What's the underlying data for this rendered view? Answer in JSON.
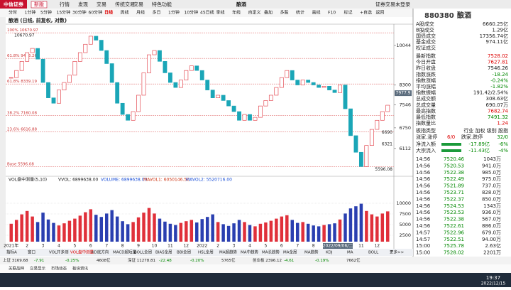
{
  "header": {
    "logo": "中信证券",
    "version_button": "新版",
    "menu": [
      "行情",
      "发现",
      "交易",
      "传统交易",
      "交易",
      "特色功能"
    ],
    "center_title": "酿酒",
    "login": "证券交易未登录"
  },
  "period_tabs": [
    "分时",
    "1分钟",
    "5分钟",
    "15分钟",
    "30分钟",
    "60分钟",
    "日线",
    "周线",
    "月线",
    "多日",
    "1分钟",
    "10分钟",
    "45日线",
    "季线",
    "年线",
    "自定义",
    "叠加",
    "多股",
    "统计",
    "画线",
    "F10",
    "标记",
    "+自选",
    "返回"
  ],
  "chart_title": "酿酒 (日线, 前复权, 对数)",
  "chart_data": {
    "type": "candlestick",
    "log_scale": true,
    "categories": [
      "2021年",
      null,
      null,
      "2",
      null,
      null,
      "3",
      null,
      null,
      "4",
      null,
      null,
      "5",
      null,
      null,
      "6",
      null,
      null,
      "7",
      null,
      null,
      "8",
      null,
      null,
      "9",
      null,
      null,
      "10",
      null,
      null,
      "11",
      null,
      null,
      "12",
      null,
      null,
      "2022",
      null,
      null,
      "2",
      null,
      null,
      "3",
      null,
      null,
      "4",
      null,
      null,
      "5",
      null,
      null,
      "6",
      null,
      null,
      "7",
      null,
      null,
      "8",
      null,
      null,
      "9",
      null,
      null,
      "10",
      null,
      null,
      "11",
      null,
      null,
      "12",
      null,
      null
    ],
    "closes": [
      8600,
      8900,
      9300,
      9700,
      9900,
      9400,
      8400,
      7800,
      7600,
      8100,
      8400,
      8700,
      9300,
      9700,
      10100,
      10500,
      10300,
      9800,
      9200,
      8400,
      7600,
      7200,
      7000,
      7300,
      7900,
      8800,
      9600,
      9800,
      9300,
      8800,
      8400,
      8200,
      8500,
      8900,
      9100,
      8900,
      8500,
      8100,
      7800,
      7900,
      7700,
      7500,
      7300,
      7000,
      7200,
      7000,
      7100,
      7500,
      7700,
      7900,
      8200,
      8600,
      8900,
      8500,
      8300,
      8500,
      8400,
      8300,
      8200,
      8250,
      8100,
      8000,
      8300,
      7400,
      6500,
      6000,
      5600,
      6200,
      6700,
      7000,
      7300,
      7528.02
    ],
    "up_color": "#e0303a",
    "down_color": "#1aa6b7",
    "ylim": [
      5400,
      10900
    ],
    "yticks": [
      10044,
      8300,
      7546,
      6750,
      6112
    ],
    "fib_lines": [
      {
        "label": "100% 10670.97",
        "value": 10670.97
      },
      {
        "label": "61.8% 9433.26",
        "value": 9433.26
      },
      {
        "label": "61.8% 8339.19",
        "value": 8339.19
      },
      {
        "label": "38.2% 7160.08",
        "value": 7160.08
      },
      {
        "label": "23.6% 6616.88",
        "value": 6616.88
      },
      {
        "label": "Base 5596.08",
        "value": 5596.08
      }
    ],
    "price_marks": [
      {
        "label": "10670.97",
        "value": 10670.97
      },
      {
        "label": "7977.9",
        "value": 7977.9
      },
      {
        "label": "6690",
        "value": 6690
      },
      {
        "label": "6321",
        "value": 6321
      },
      {
        "label": "5596.08",
        "value": 5596.08
      }
    ],
    "date_box": "2022/09/06/二"
  },
  "volume_data": {
    "type": "bar",
    "title": "VOL盘中测量(5,10)",
    "stats": [
      "VVOL: 6899638.00",
      "VOLUME: 6899638.00",
      "MAVOL1: 6050146.50",
      "MAVOL2: 5520716.00"
    ],
    "values": [
      5200,
      6100,
      7400,
      8200,
      6900,
      5600,
      7800,
      6200,
      5400,
      4800,
      5300,
      5900,
      6400,
      7100,
      7900,
      8600,
      7300,
      6800,
      7600,
      8400,
      6900,
      5800,
      5100,
      5600,
      6700,
      7800,
      8900,
      7600,
      6400,
      5700,
      5200,
      4900,
      5400,
      5800,
      6100,
      5500,
      6300,
      6800,
      7400,
      5600,
      5100,
      4700,
      5300,
      6100,
      5600,
      4900,
      4600,
      5200,
      5500,
      5900,
      6400,
      6900,
      7200,
      6100,
      5400,
      5600,
      5200,
      4800,
      4600,
      4900,
      5100,
      5300,
      6200,
      7600,
      8800,
      9300,
      9900,
      8200,
      7400,
      6900,
      7600,
      8100
    ],
    "color_up": "#e0303a",
    "color_down": "#2a3fb0",
    "ylim": [
      1000,
      14000
    ],
    "yticks": [
      10000,
      7500,
      5000,
      2500
    ]
  },
  "indicator_tabs": [
    "指标A",
    "窗口",
    "VOL开多测",
    "VOL盘中测量",
    "KD底方向",
    "MACD超短量",
    "BOLL全周",
    "BIAS全周",
    "BBI全周",
    "HSL全周",
    "MA超趋势",
    "MA中趋势",
    "MA长趋势",
    "MA全周",
    "MA趋势",
    "KDJ",
    "MA",
    "BOLL",
    "更多>>"
  ],
  "status_bar": [
    "上证 3169.68",
    "-7.91",
    "-0.25%",
    "4608亿",
    "深证 11278.81",
    "-22.48",
    "-0.20%",
    "5765亿",
    "创业板 2396.12",
    "-4.61",
    "-0.19%",
    "7662亿"
  ],
  "tray": [
    "关联品种",
    "交易显示",
    "市场动态",
    "板块资讯"
  ],
  "panel": {
    "code": "880380",
    "name": "酿酒",
    "turnover": [
      [
        "A股成交",
        "6660.25亿"
      ],
      [
        "B股成交",
        "1.29亿"
      ],
      [
        "国债成交",
        "17356.74亿"
      ],
      [
        "基金成交",
        "974.11亿"
      ],
      [
        "权证成交",
        ""
      ]
    ],
    "stats": [
      {
        "label": "最新指数",
        "value": "7528.02",
        "color": "#d00"
      },
      {
        "label": "今日开盘",
        "value": "7627.81",
        "color": "#d00"
      },
      {
        "label": "昨日收盘",
        "value": "7546.26",
        "color": "#222"
      },
      {
        "label": "指数涨跌",
        "value": "-18.24",
        "color": "#080"
      },
      {
        "label": "指数涨幅",
        "value": "-0.24%",
        "color": "#080"
      },
      {
        "label": "平均涨幅",
        "value": "-1.82%",
        "color": "#080"
      },
      {
        "label": "指数振幅",
        "value": "191.42/2.54%",
        "color": "#222"
      },
      {
        "label": "总成交额",
        "value": "308.63亿",
        "color": "#222"
      },
      {
        "label": "总成交量",
        "value": "690.07万",
        "color": "#222"
      },
      {
        "label": "最高指数",
        "value": "7682.74",
        "color": "#d00"
      },
      {
        "label": "最低指数",
        "value": "7491.32",
        "color": "#080"
      },
      {
        "label": "指数量比",
        "value": "1.24",
        "color": "#d00"
      }
    ],
    "board_type": [
      "板指类型",
      "行业 加权 级别 股指"
    ],
    "breadth": [
      "涨家.涨停",
      "6/0",
      "跌家.跌停",
      "32/0"
    ],
    "flows": [
      [
        "净流入额",
        "-17.89亿",
        "-6%"
      ],
      [
        "大宗流入",
        "-11.43亿",
        "-4%"
      ]
    ],
    "trades": [
      [
        "14:56",
        "7520.46",
        "1043万"
      ],
      [
        "14:56",
        "7520.53",
        "941.0万"
      ],
      [
        "14:56",
        "7522.38",
        "985.0万"
      ],
      [
        "14:56",
        "7522.49",
        "975.0万"
      ],
      [
        "14:56",
        "7521.89",
        "737.0万"
      ],
      [
        "14:56",
        "7523.71",
        "828.0万"
      ],
      [
        "14:56",
        "7522.37",
        "850.0万"
      ],
      [
        "14:56",
        "7524.53",
        "1343万"
      ],
      [
        "14:56",
        "7523.53",
        "936.0万"
      ],
      [
        "14:56",
        "7522.38",
        "567.0万"
      ],
      [
        "14:56",
        "7522.61",
        "886.0万"
      ],
      [
        "14:57",
        "7522.96",
        "679.0万"
      ],
      [
        "14:57",
        "7522.51",
        "94.00万"
      ],
      [
        "15:00",
        "7525.78",
        "2.63亿"
      ],
      [
        "15:00",
        "7528.02",
        "2201万"
      ]
    ]
  },
  "taskbar": {
    "time": "19:37",
    "date": "2022/12/15"
  }
}
